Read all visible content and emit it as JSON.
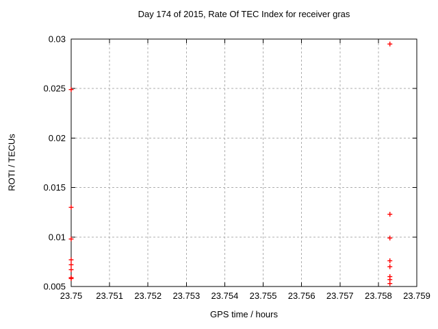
{
  "chart_data": {
    "type": "scatter",
    "title": "Day 174 of 2015, Rate Of TEC Index for receiver gras",
    "xlabel": "GPS time / hours",
    "ylabel": "ROTI / TECUs",
    "xlim": [
      23.75,
      23.759
    ],
    "ylim": [
      0.005,
      0.03
    ],
    "xticks": {
      "values": [
        23.75,
        23.751,
        23.752,
        23.753,
        23.754,
        23.755,
        23.756,
        23.757,
        23.758,
        23.759
      ],
      "labels": [
        "23.75",
        "23.751",
        "23.752",
        "23.753",
        "23.754",
        "23.755",
        "23.756",
        "23.757",
        "23.758",
        "23.759"
      ]
    },
    "yticks": {
      "values": [
        0.005,
        0.01,
        0.015,
        0.02,
        0.025,
        0.03
      ],
      "labels": [
        "0.005",
        "0.01",
        "0.015",
        "0.02",
        "0.025",
        "0.03"
      ]
    },
    "grid": true,
    "legend_position": "none",
    "marker": {
      "shape": "plus",
      "color": "#ff0000",
      "size": 7
    },
    "colors": {
      "marker": "#ff0000",
      "grid": "#adadad",
      "axis": "#000000",
      "background": "#ffffff"
    },
    "series": [
      {
        "name": "ROTI",
        "points": [
          [
            23.75,
            0.0249
          ],
          [
            23.75,
            0.013
          ],
          [
            23.75,
            0.0098
          ],
          [
            23.75,
            0.0077
          ],
          [
            23.75,
            0.0072
          ],
          [
            23.75,
            0.0067
          ],
          [
            23.75,
            0.0059
          ],
          [
            23.75,
            0.0058
          ],
          [
            23.7583,
            0.0295
          ],
          [
            23.7583,
            0.0123
          ],
          [
            23.7583,
            0.0099
          ],
          [
            23.7583,
            0.0076
          ],
          [
            23.7583,
            0.007
          ],
          [
            23.7583,
            0.006
          ],
          [
            23.7583,
            0.0057
          ],
          [
            23.7583,
            0.0053
          ]
        ]
      }
    ]
  }
}
